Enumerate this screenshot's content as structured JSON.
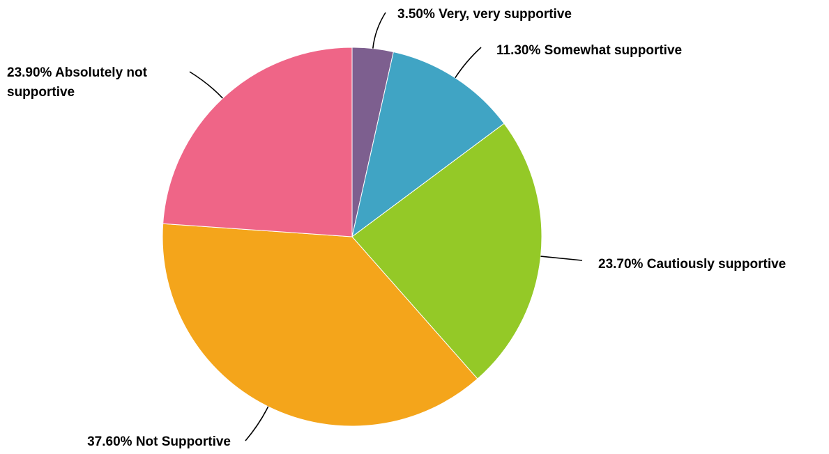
{
  "chart_data": {
    "type": "pie",
    "title": "",
    "slices": [
      {
        "label": "3.50% Very, very supportive",
        "value": 3.5,
        "color": "#7d5f8f"
      },
      {
        "label": "11.30% Somewhat supportive",
        "value": 11.3,
        "color": "#40a4c4"
      },
      {
        "label": "23.70% Cautiously supportive",
        "value": 23.7,
        "color": "#94c927"
      },
      {
        "label": "37.60% Not Supportive",
        "value": 37.6,
        "color": "#f4a51b"
      },
      {
        "label": "23.90% Absolutely not supportive",
        "value": 23.9,
        "color": "#ef6587"
      }
    ],
    "start_angle": "12 o'clock",
    "direction": "clockwise",
    "legend": "none"
  }
}
